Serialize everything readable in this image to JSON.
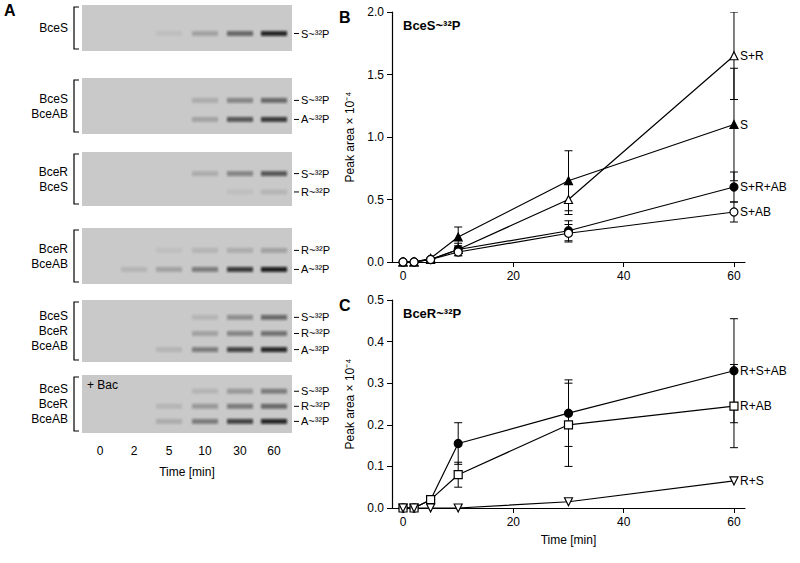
{
  "gel": {
    "panel_label": "A",
    "lanes_label": "Time [min]",
    "times": [
      0,
      2,
      5,
      10,
      30,
      60
    ],
    "strips": [
      {
        "proteins": [
          "BceS"
        ],
        "bands": [
          {
            "label": "S~³²P",
            "intensity": [
              0,
              0,
              0.05,
              0.2,
              0.5,
              0.85
            ]
          }
        ]
      },
      {
        "proteins": [
          "BceS",
          "BceAB"
        ],
        "bands": [
          {
            "label": "S~³²P",
            "intensity": [
              0,
              0,
              0,
              0.15,
              0.35,
              0.5
            ]
          },
          {
            "label": "A~³²P",
            "intensity": [
              0,
              0,
              0,
              0.2,
              0.6,
              0.75
            ]
          }
        ]
      },
      {
        "proteins": [
          "BceR",
          "BceS"
        ],
        "bands": [
          {
            "label": "S~³²P",
            "intensity": [
              0,
              0,
              0,
              0.15,
              0.35,
              0.6
            ]
          },
          {
            "label": "R~³²P",
            "intensity": [
              0,
              0,
              0,
              0,
              0.05,
              0.1
            ]
          }
        ]
      },
      {
        "proteins": [
          "BceR",
          "BceAB"
        ],
        "bands": [
          {
            "label": "R~³²P",
            "intensity": [
              0,
              0,
              0.05,
              0.1,
              0.15,
              0.2
            ]
          },
          {
            "label": "A~³²P",
            "intensity": [
              0,
              0.1,
              0.2,
              0.4,
              0.75,
              0.9
            ]
          }
        ]
      },
      {
        "proteins": [
          "BceS",
          "BceR",
          "BceAB"
        ],
        "bands": [
          {
            "label": "S~³²P",
            "intensity": [
              0,
              0,
              0,
              0.1,
              0.3,
              0.5
            ]
          },
          {
            "label": "R~³²P",
            "intensity": [
              0,
              0,
              0,
              0.2,
              0.35,
              0.45
            ]
          },
          {
            "label": "A~³²P",
            "intensity": [
              0,
              0,
              0.1,
              0.4,
              0.7,
              0.85
            ]
          }
        ]
      },
      {
        "proteins": [
          "BceS",
          "BceR",
          "BceAB"
        ],
        "inset": "+ Bac",
        "bands": [
          {
            "label": "S~³²P",
            "intensity": [
              0,
              0,
              0,
              0.1,
              0.25,
              0.4
            ]
          },
          {
            "label": "R~³²P",
            "intensity": [
              0,
              0,
              0.1,
              0.25,
              0.4,
              0.5
            ]
          },
          {
            "label": "A~³²P",
            "intensity": [
              0,
              0,
              0.15,
              0.4,
              0.7,
              0.85
            ]
          }
        ]
      }
    ]
  },
  "chart_data": [
    {
      "type": "line",
      "panel_label": "B",
      "title": "BceS~³²P",
      "ylabel": "Peak area × 10⁻⁴",
      "x": [
        0,
        2,
        5,
        10,
        30,
        60
      ],
      "xlim": [
        -2,
        62
      ],
      "xticks": [
        0,
        20,
        40,
        60
      ],
      "ylim": [
        0,
        2.0
      ],
      "yticks": [
        {
          "value": 0,
          "label": "0.0"
        },
        0.5,
        {
          "value": 1,
          "label": "1.0"
        },
        1.5,
        {
          "value": 2,
          "label": "2.0"
        }
      ],
      "grid": false,
      "series": [
        {
          "name": "S+R",
          "color": "#000000",
          "marker": "open-triangle",
          "values": [
            0,
            0,
            0.02,
            0.1,
            0.5,
            1.65
          ],
          "errors": [
            null,
            null,
            null,
            0.05,
            0.12,
            0.35
          ]
        },
        {
          "name": "S",
          "color": "#000000",
          "marker": "filled-triangle",
          "values": [
            0,
            0,
            0.03,
            0.2,
            0.65,
            1.1
          ],
          "errors": [
            null,
            null,
            null,
            0.08,
            0.24,
            0.45
          ]
        },
        {
          "name": "S+R+AB",
          "color": "#000000",
          "marker": "filled-circle",
          "values": [
            0,
            0,
            0.02,
            0.1,
            0.25,
            0.6
          ],
          "errors": [
            null,
            null,
            null,
            0.03,
            0.08,
            0.12
          ]
        },
        {
          "name": "S+AB",
          "color": "#000000",
          "marker": "open-circle",
          "values": [
            0,
            0,
            0.02,
            0.08,
            0.23,
            0.4
          ],
          "errors": [
            null,
            null,
            null,
            0.03,
            0.07,
            0.08
          ]
        }
      ]
    },
    {
      "type": "line",
      "panel_label": "C",
      "title": "BceR~³²P",
      "ylabel": "Peak area × 10⁻⁴",
      "xlabel": "Time [min]",
      "x": [
        0,
        2,
        5,
        10,
        30,
        60
      ],
      "xlim": [
        -2,
        62
      ],
      "xticks": [
        0,
        20,
        40,
        60
      ],
      "ylim": [
        0,
        0.5
      ],
      "yticks": [
        {
          "value": 0,
          "label": "0.0"
        },
        0.1,
        0.2,
        0.3,
        0.4,
        0.5
      ],
      "grid": false,
      "series": [
        {
          "name": "R+S+AB",
          "color": "#000000",
          "marker": "filled-circle",
          "values": [
            0,
            0,
            0.02,
            0.155,
            0.228,
            0.33
          ],
          "errors": [
            null,
            null,
            null,
            0.05,
            0.08,
            0.125
          ]
        },
        {
          "name": "R+AB",
          "color": "#000000",
          "marker": "open-square",
          "values": [
            0,
            0,
            0.02,
            0.08,
            0.2,
            0.245
          ],
          "errors": [
            null,
            null,
            0.01,
            0.03,
            0.1,
            0.1
          ]
        },
        {
          "name": "R+S",
          "color": "#000000",
          "marker": "open-triangle-down",
          "values": [
            0,
            0,
            0,
            0,
            0.015,
            0.065
          ],
          "errors": [
            null,
            null,
            null,
            null,
            null,
            null
          ]
        }
      ]
    }
  ]
}
